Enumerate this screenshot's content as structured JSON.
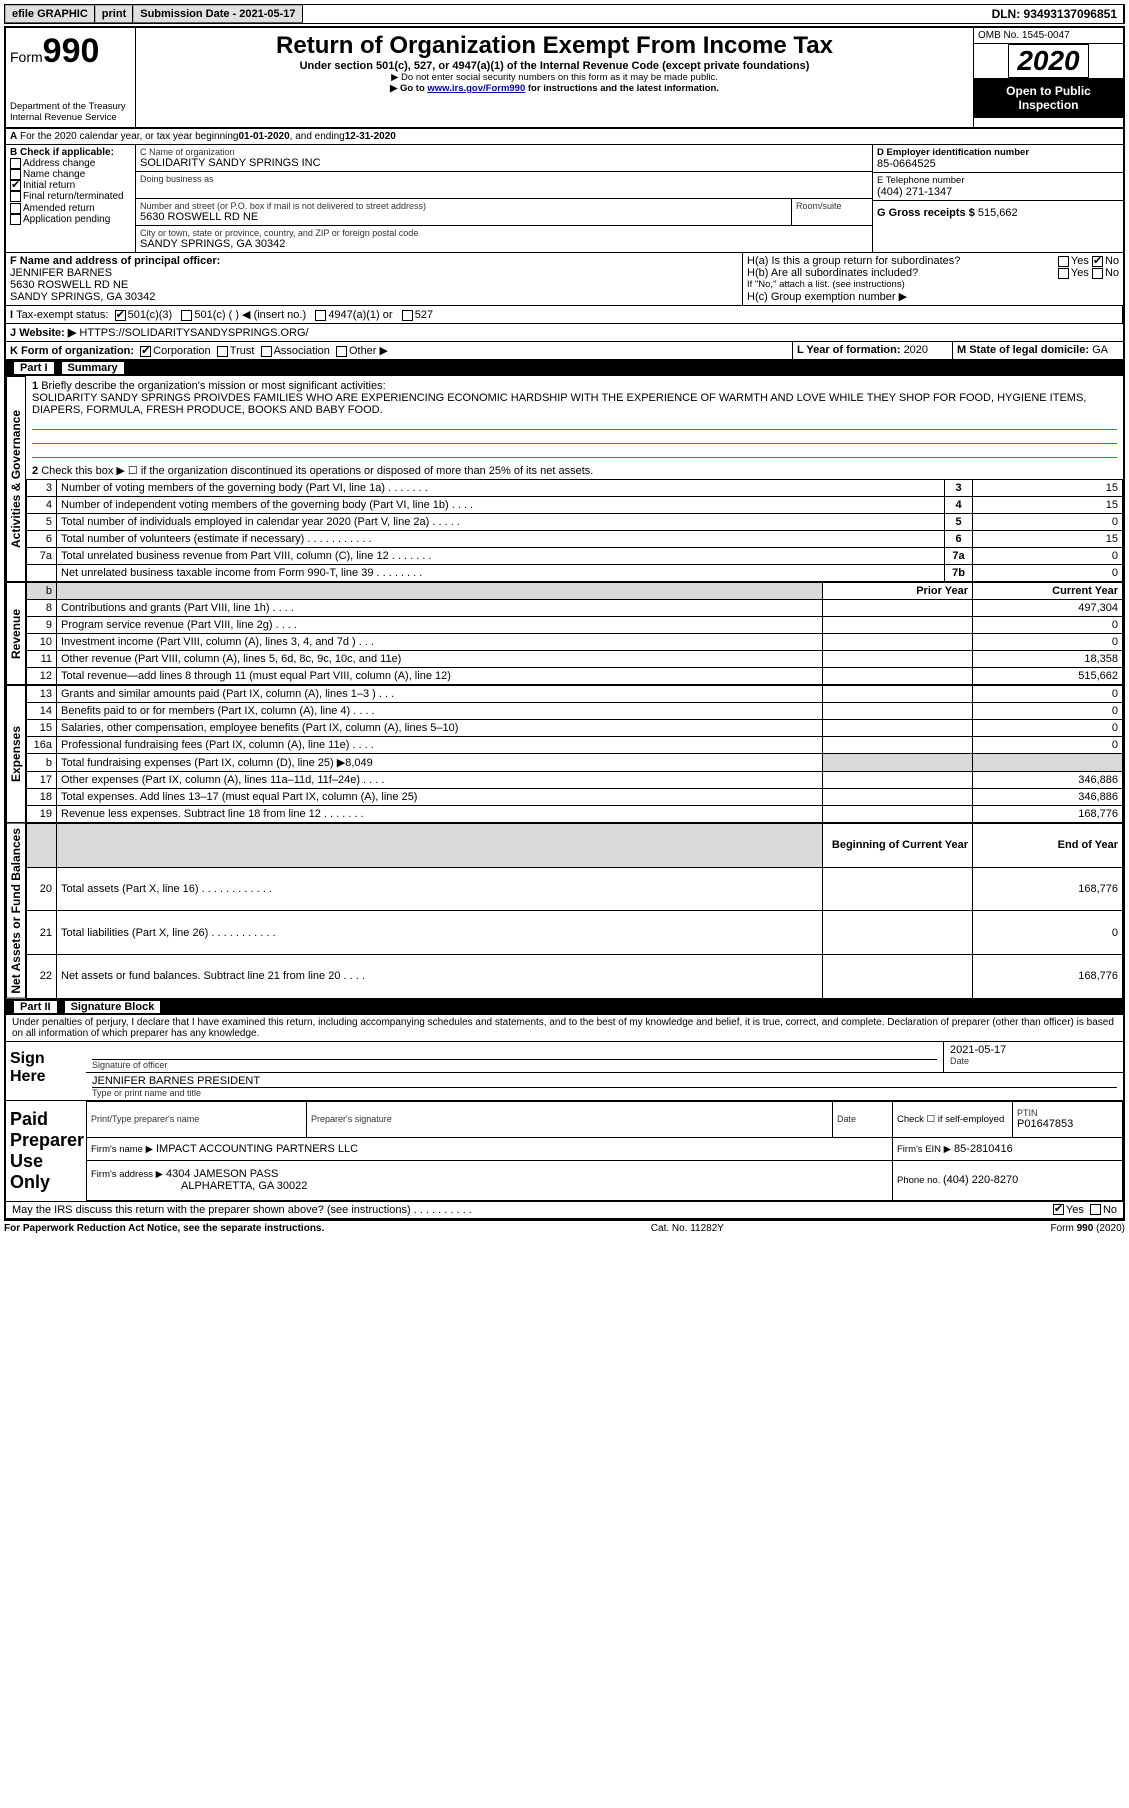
{
  "topbar": {
    "efile": "efile GRAPHIC",
    "print": "print",
    "subdate_label": "Submission Date - 2021-05-17",
    "dln": "DLN: 93493137096851"
  },
  "header": {
    "form_label": "Form",
    "form_num": "990",
    "title": "Return of Organization Exempt From Income Tax",
    "subtitle": "Under section 501(c), 527, or 4947(a)(1) of the Internal Revenue Code (except private foundations)",
    "warn1": "▶ Do not enter social security numbers on this form as it may be made public.",
    "warn2_a": "▶ Go to ",
    "warn2_link": "www.irs.gov/Form990",
    "warn2_b": " for instructions and the latest information.",
    "dept": "Department of the Treasury\nInternal Revenue Service",
    "omb": "OMB No. 1545-0047",
    "year": "2020",
    "open": "Open to Public Inspection"
  },
  "A": {
    "text_a": "For the 2020 calendar year, or tax year beginning ",
    "begin": "01-01-2020",
    "text_b": ", and ending ",
    "end": "12-31-2020"
  },
  "B": {
    "label": "B Check if applicable:",
    "items": [
      "Address change",
      "Name change",
      "Initial return",
      "Final return/terminated",
      "Amended return",
      "Application pending"
    ],
    "checked": [
      false,
      false,
      true,
      false,
      false,
      false
    ]
  },
  "C": {
    "name_label": "C Name of organization",
    "name": "SOLIDARITY SANDY SPRINGS INC",
    "dba_label": "Doing business as",
    "addr_label": "Number and street (or P.O. box if mail is not delivered to street address)",
    "room_label": "Room/suite",
    "addr": "5630 ROSWELL RD NE",
    "city_label": "City or town, state or province, country, and ZIP or foreign postal code",
    "city": "SANDY SPRINGS, GA  30342"
  },
  "D": {
    "label": "D Employer identification number",
    "val": "85-0664525"
  },
  "E": {
    "label": "E Telephone number",
    "val": "(404) 271-1347"
  },
  "G": {
    "label": "G Gross receipts $ ",
    "val": "515,662"
  },
  "F": {
    "label": "F  Name and address of principal officer:",
    "name": "JENNIFER BARNES",
    "addr1": "5630 ROSWELL RD NE",
    "addr2": "SANDY SPRINGS, GA  30342"
  },
  "H": {
    "a": "H(a)  Is this a group return for subordinates?",
    "b": "H(b)  Are all subordinates included?",
    "note": "If \"No,\" attach a list. (see instructions)",
    "c": "H(c)  Group exemption number ▶",
    "a_no": true
  },
  "I": {
    "label": "Tax-exempt status:",
    "opts": [
      "501(c)(3)",
      "501(c) (  ) ◀ (insert no.)",
      "4947(a)(1) or",
      "527"
    ],
    "checked": [
      true,
      false,
      false,
      false
    ]
  },
  "J": {
    "label": "Website: ▶",
    "val": "HTTPS://SOLIDARITYSANDYSPRINGS.ORG/"
  },
  "K": {
    "label": "K Form of organization:",
    "opts": [
      "Corporation",
      "Trust",
      "Association",
      "Other ▶"
    ],
    "checked": [
      true,
      false,
      false,
      false
    ]
  },
  "L": {
    "label": "L Year of formation: ",
    "val": "2020"
  },
  "M": {
    "label": "M State of legal domicile: ",
    "val": "GA"
  },
  "part1": {
    "header": "Part I",
    "title": "Summary"
  },
  "summary": {
    "q1": "Briefly describe the organization's mission or most significant activities:",
    "mission": "SOLIDARITY SANDY SPRINGS PROIVDES FAMILIES WHO ARE EXPERIENCING ECONOMIC HARDSHIP WITH THE EXPERIENCE OF WARMTH AND LOVE WHILE THEY SHOP FOR FOOD, HYGIENE ITEMS, DIAPERS, FORMULA, FRESH PRODUCE, BOOKS AND BABY FOOD.",
    "q2": "Check this box ▶ ☐  if the organization discontinued its operations or disposed of more than 25% of its net assets.",
    "tabs": {
      "gov": "Activities & Governance",
      "rev": "Revenue",
      "exp": "Expenses",
      "net": "Net Assets or Fund Balances"
    },
    "lines_gov": [
      {
        "n": "3",
        "d": "Number of voting members of the governing body (Part VI, line 1a)  .    .    .    .    .    .    .",
        "box": "3",
        "v": "15"
      },
      {
        "n": "4",
        "d": "Number of independent voting members of the governing body (Part VI, line 1b)  .    .    .    .",
        "box": "4",
        "v": "15"
      },
      {
        "n": "5",
        "d": "Total number of individuals employed in calendar year 2020 (Part V, line 2a)  .    .    .    .    .",
        "box": "5",
        "v": "0"
      },
      {
        "n": "6",
        "d": "Total number of volunteers (estimate if necessary)    .    .    .    .    .    .    .    .    .    .    .",
        "box": "6",
        "v": "15"
      },
      {
        "n": "7a",
        "d": "Total unrelated business revenue from Part VIII, column (C), line 12    .    .    .    .    .    .    .",
        "box": "7a",
        "v": "0"
      },
      {
        "n": "",
        "d": "Net unrelated business taxable income from Form 990-T, line 39    .    .    .    .    .    .    .    .",
        "box": "7b",
        "v": "0"
      }
    ],
    "hdr_prior": "Prior Year",
    "hdr_curr": "Current Year",
    "lines_rev": [
      {
        "n": "8",
        "d": "Contributions and grants (Part VIII, line 1h)    .    .    .    .",
        "p": "",
        "c": "497,304"
      },
      {
        "n": "9",
        "d": "Program service revenue (Part VIII, line 2g)    .    .    .    .",
        "p": "",
        "c": "0"
      },
      {
        "n": "10",
        "d": "Investment income (Part VIII, column (A), lines 3, 4, and 7d )    .    .    .",
        "p": "",
        "c": "0"
      },
      {
        "n": "11",
        "d": "Other revenue (Part VIII, column (A), lines 5, 6d, 8c, 9c, 10c, and 11e)",
        "p": "",
        "c": "18,358"
      },
      {
        "n": "12",
        "d": "Total revenue—add lines 8 through 11 (must equal Part VIII, column (A), line 12)",
        "p": "",
        "c": "515,662"
      }
    ],
    "lines_exp": [
      {
        "n": "13",
        "d": "Grants and similar amounts paid (Part IX, column (A), lines 1–3 )    .    .    .",
        "p": "",
        "c": "0"
      },
      {
        "n": "14",
        "d": "Benefits paid to or for members (Part IX, column (A), line 4)    .    .    .    .",
        "p": "",
        "c": "0"
      },
      {
        "n": "15",
        "d": "Salaries, other compensation, employee benefits (Part IX, column (A), lines 5–10)",
        "p": "",
        "c": "0"
      },
      {
        "n": "16a",
        "d": "Professional fundraising fees (Part IX, column (A), line 11e)    .    .    .    .",
        "p": "",
        "c": "0"
      },
      {
        "n": "b",
        "d": "Total fundraising expenses (Part IX, column (D), line 25) ▶8,049",
        "p": "shade",
        "c": "shade"
      },
      {
        "n": "17",
        "d": "Other expenses (Part IX, column (A), lines 11a–11d, 11f–24e)    .    .    .    .",
        "p": "",
        "c": "346,886"
      },
      {
        "n": "18",
        "d": "Total expenses. Add lines 13–17 (must equal Part IX, column (A), line 25)",
        "p": "",
        "c": "346,886"
      },
      {
        "n": "19",
        "d": "Revenue less expenses. Subtract line 18 from line 12  .    .    .    .    .    .    .",
        "p": "",
        "c": "168,776"
      }
    ],
    "hdr_begin": "Beginning of Current Year",
    "hdr_end": "End of Year",
    "lines_net": [
      {
        "n": "20",
        "d": "Total assets (Part X, line 16)  .    .    .    .    .    .    .    .    .    .    .    .",
        "p": "",
        "c": "168,776"
      },
      {
        "n": "21",
        "d": "Total liabilities (Part X, line 26)  .    .    .    .    .    .    .    .    .    .    .",
        "p": "",
        "c": "0"
      },
      {
        "n": "22",
        "d": "Net assets or fund balances. Subtract line 21 from line 20    .    .    .    .",
        "p": "",
        "c": "168,776"
      }
    ]
  },
  "part2": {
    "header": "Part II",
    "title": "Signature Block"
  },
  "sig": {
    "perjury": "Under penalties of perjury, I declare that I have examined this return, including accompanying schedules and statements, and to the best of my knowledge and belief, it is true, correct, and complete. Declaration of preparer (other than officer) is based on all information of which preparer has any knowledge.",
    "here": "Sign Here",
    "sig_label": "Signature of officer",
    "date_label": "Date",
    "date": "2021-05-17",
    "name_title": "JENNIFER BARNES  PRESIDENT",
    "name_label": "Type or print name and title",
    "paid": "Paid Preparer Use Only",
    "prep_name_label": "Print/Type preparer's name",
    "prep_sig_label": "Preparer's signature",
    "prep_date_label": "Date",
    "self_emp": "Check ☐ if self-employed",
    "ptin_label": "PTIN",
    "ptin": "P01647853",
    "firm_name_label": "Firm's name    ▶",
    "firm_name": "IMPACT ACCOUNTING PARTNERS LLC",
    "firm_ein_label": "Firm's EIN ▶",
    "firm_ein": "85-2810416",
    "firm_addr_label": "Firm's address ▶",
    "firm_addr1": "4304 JAMESON PASS",
    "firm_addr2": "ALPHARETTA, GA  30022",
    "phone_label": "Phone no. ",
    "phone": "(404) 220-8270",
    "discuss": "May the IRS discuss this return with the preparer shown above? (see instructions)    .    .    .    .    .    .    .    .    .    .",
    "discuss_yes": true
  },
  "footer": {
    "left": "For Paperwork Reduction Act Notice, see the separate instructions.",
    "mid": "Cat. No. 11282Y",
    "right": "Form 990 (2020)"
  }
}
